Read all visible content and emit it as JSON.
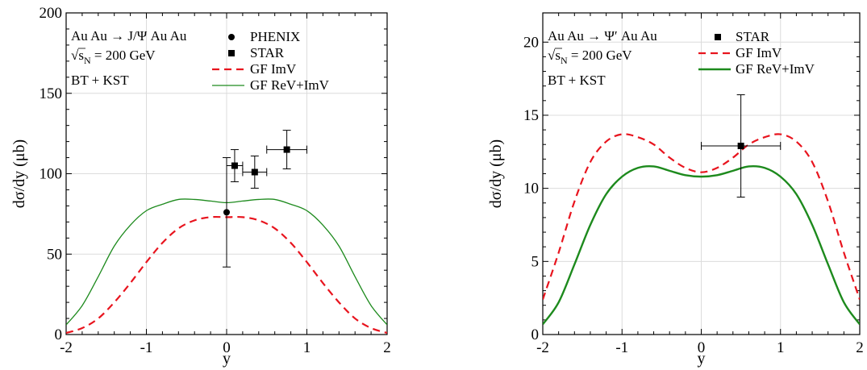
{
  "chart_data": [
    {
      "type": "line",
      "title": "",
      "xlabel": "y",
      "ylabel": "dσ/dy (μb)",
      "xlim": [
        -2,
        2
      ],
      "ylim": [
        0,
        200
      ],
      "xticks": [
        "-2",
        "-1",
        "0",
        "1",
        "2"
      ],
      "yticks": [
        "0",
        "50",
        "100",
        "150",
        "200"
      ],
      "xtick_values": [
        -2,
        -1,
        0,
        1,
        2
      ],
      "ytick_values": [
        0,
        50,
        100,
        150,
        200
      ],
      "grid": true,
      "legend_position": "top-right",
      "annotations": [
        "Au Au  → J/Ψ Au Au",
        "√s_N = 200 GeV",
        "BT + KST"
      ],
      "series": [
        {
          "name": "PHENIX",
          "kind": "points",
          "marker": "circle",
          "color": "#000000",
          "x": [
            0.0
          ],
          "y": [
            76
          ],
          "yerr_low": [
            34
          ],
          "yerr_high": [
            34
          ],
          "xerr": [
            0
          ]
        },
        {
          "name": "STAR",
          "kind": "points",
          "marker": "square",
          "color": "#000000",
          "x": [
            0.1,
            0.35,
            0.75
          ],
          "y": [
            105,
            101,
            115
          ],
          "yerr_low": [
            10,
            10,
            12
          ],
          "yerr_high": [
            10,
            10,
            12
          ],
          "xerr": [
            0.1,
            0.15,
            0.25
          ]
        },
        {
          "name": "GF ImV",
          "kind": "line",
          "style": "dashed",
          "color": "#e8141e",
          "x": [
            -2,
            -1.8,
            -1.6,
            -1.4,
            -1.2,
            -1,
            -0.8,
            -0.6,
            -0.4,
            -0.2,
            0,
            0.2,
            0.4,
            0.6,
            0.8,
            1,
            1.2,
            1.4,
            1.6,
            1.8,
            2
          ],
          "y": [
            1,
            4,
            10,
            20,
            32,
            45,
            57,
            66,
            71,
            73,
            73,
            73,
            71,
            66,
            57,
            45,
            32,
            20,
            10,
            4,
            1
          ]
        },
        {
          "name": "GF ReV+ImV",
          "kind": "line",
          "style": "solid",
          "color": "#1d8a1d",
          "x": [
            -2,
            -1.8,
            -1.6,
            -1.4,
            -1.2,
            -1,
            -0.8,
            -0.6,
            -0.4,
            -0.2,
            0,
            0.2,
            0.4,
            0.6,
            0.8,
            1,
            1.2,
            1.4,
            1.6,
            1.8,
            2
          ],
          "y": [
            6,
            18,
            36,
            55,
            68,
            77,
            81,
            84,
            84,
            83,
            82,
            83,
            84,
            84,
            81,
            77,
            68,
            55,
            36,
            18,
            6
          ]
        }
      ]
    },
    {
      "type": "line",
      "title": "",
      "xlabel": "y",
      "ylabel": "dσ/dy (μb)",
      "xlim": [
        -2,
        2
      ],
      "ylim": [
        0,
        22
      ],
      "xticks": [
        "-2",
        "-1",
        "0",
        "1",
        "2"
      ],
      "yticks": [
        "0",
        "5",
        "10",
        "15",
        "20"
      ],
      "xtick_values": [
        -2,
        -1,
        0,
        1,
        2
      ],
      "ytick_values": [
        0,
        5,
        10,
        15,
        20
      ],
      "grid": true,
      "legend_position": "top-right",
      "annotations": [
        "Au Au  → Ψ′ Au Au",
        "√s_N = 200 GeV",
        "BT + KST"
      ],
      "series": [
        {
          "name": "STAR",
          "kind": "points",
          "marker": "square",
          "color": "#000000",
          "x": [
            0.5
          ],
          "y": [
            12.9
          ],
          "yerr_low": [
            3.5
          ],
          "yerr_high": [
            3.5
          ],
          "xerr": [
            0.5
          ]
        },
        {
          "name": "GF ImV",
          "kind": "line",
          "style": "dashed",
          "color": "#e8141e",
          "x": [
            -2,
            -1.8,
            -1.6,
            -1.4,
            -1.2,
            -1,
            -0.8,
            -0.6,
            -0.4,
            -0.2,
            0,
            0.2,
            0.4,
            0.6,
            0.8,
            1,
            1.2,
            1.4,
            1.6,
            1.8,
            2
          ],
          "y": [
            2.4,
            5.6,
            9.1,
            11.8,
            13.2,
            13.7,
            13.5,
            13.0,
            12.1,
            11.4,
            11.1,
            11.4,
            12.1,
            13.0,
            13.5,
            13.7,
            13.2,
            11.8,
            9.1,
            5.6,
            2.4
          ]
        },
        {
          "name": "GF ReV+ImV",
          "kind": "line",
          "style": "solid",
          "color": "#1d8a1d",
          "x": [
            -2,
            -1.8,
            -1.6,
            -1.4,
            -1.2,
            -1,
            -0.8,
            -0.6,
            -0.4,
            -0.2,
            0,
            0.2,
            0.4,
            0.6,
            0.8,
            1,
            1.2,
            1.4,
            1.6,
            1.8,
            2
          ],
          "y": [
            0.7,
            2.2,
            4.8,
            7.5,
            9.6,
            10.8,
            11.4,
            11.5,
            11.2,
            10.9,
            10.8,
            10.9,
            11.2,
            11.5,
            11.4,
            10.8,
            9.6,
            7.5,
            4.8,
            2.2,
            0.7
          ]
        }
      ]
    }
  ]
}
